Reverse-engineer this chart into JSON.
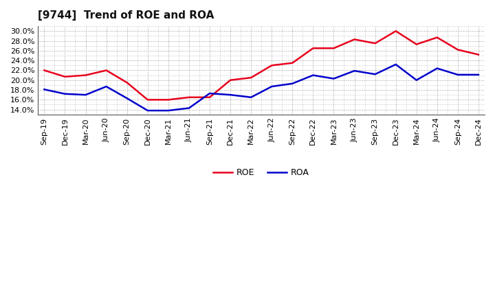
{
  "title": "[9744]  Trend of ROE and ROA",
  "x_labels": [
    "Sep-19",
    "Dec-19",
    "Mar-20",
    "Jun-20",
    "Sep-20",
    "Dec-20",
    "Mar-21",
    "Jun-21",
    "Sep-21",
    "Dec-21",
    "Mar-22",
    "Jun-22",
    "Sep-22",
    "Dec-22",
    "Mar-23",
    "Jun-23",
    "Sep-23",
    "Dec-23",
    "Mar-24",
    "Jun-24",
    "Sep-24",
    "Dec-24"
  ],
  "roe": [
    22.0,
    20.7,
    21.0,
    22.0,
    19.5,
    16.0,
    16.0,
    16.5,
    16.5,
    20.0,
    20.5,
    23.0,
    23.5,
    26.5,
    26.5,
    28.3,
    27.5,
    30.0,
    27.3,
    28.7,
    26.2,
    25.2
  ],
  "roa": [
    18.1,
    17.2,
    17.0,
    18.7,
    16.3,
    13.8,
    13.8,
    14.3,
    17.3,
    17.0,
    16.5,
    18.7,
    19.3,
    21.0,
    20.3,
    21.9,
    21.2,
    23.2,
    20.0,
    22.4,
    21.1,
    21.1
  ],
  "roe_color": "#e8001c",
  "roa_color": "#0000cc",
  "ylim": [
    13.0,
    31.0
  ],
  "ytick_values": [
    14.0,
    16.0,
    18.0,
    20.0,
    22.0,
    24.0,
    26.0,
    28.0,
    30.0
  ],
  "background_color": "#ffffff",
  "plot_bg_color": "#ffffff",
  "grid_color": "#999999",
  "title_fontsize": 11,
  "tick_fontsize": 8,
  "legend_fontsize": 9,
  "line_width": 1.8
}
